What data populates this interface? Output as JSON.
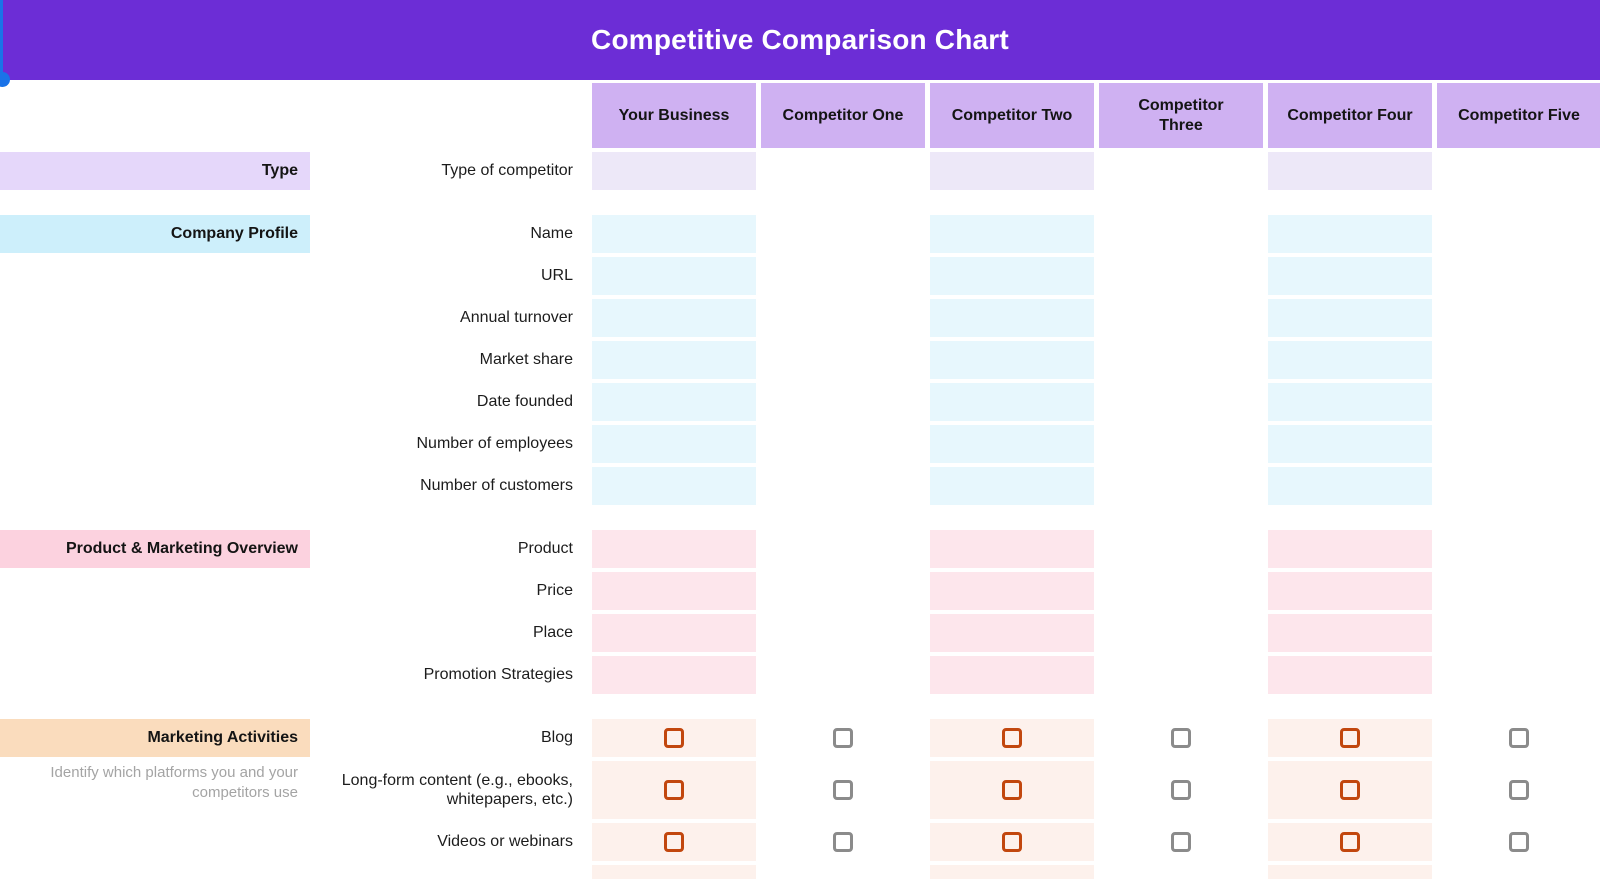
{
  "banner": {
    "title": "Competitive Comparison Chart",
    "background": "#6c2dd6",
    "selection_color": "#1a73e8"
  },
  "table": {
    "header_background": "#cfb1f2",
    "columns": [
      {
        "label": "Your Business",
        "highlighted": true
      },
      {
        "label": "Competitor One",
        "highlighted": false
      },
      {
        "label": "Competitor Two",
        "highlighted": true
      },
      {
        "label": "Competitor\nThree",
        "highlighted": false
      },
      {
        "label": "Competitor Four",
        "highlighted": true
      },
      {
        "label": "Competitor Five",
        "highlighted": false
      }
    ],
    "checkbox_colors": {
      "highlighted_column": "#c2470e",
      "plain_column": "#8b8b8b"
    },
    "sections": [
      {
        "label": "Type",
        "label_background": "#e5d7fa",
        "cell_background": "#ede8f8",
        "rows": [
          {
            "label": "Type of competitor"
          }
        ]
      },
      {
        "label": "Company Profile",
        "label_background": "#cdeffb",
        "cell_background": "#e7f7fd",
        "rows": [
          {
            "label": "Name"
          },
          {
            "label": "URL"
          },
          {
            "label": "Annual turnover"
          },
          {
            "label": "Market share"
          },
          {
            "label": "Date founded"
          },
          {
            "label": "Number of employees"
          },
          {
            "label": "Number of customers"
          }
        ]
      },
      {
        "label": "Product & Marketing Overview",
        "label_background": "#fcd2df",
        "cell_background": "#fde6ec",
        "rows": [
          {
            "label": "Product"
          },
          {
            "label": "Price"
          },
          {
            "label": "Place"
          },
          {
            "label": "Promotion Strategies"
          }
        ]
      },
      {
        "label": "Marketing Activities",
        "subtitle": "Identify which platforms you and your competitors use",
        "label_background": "#fadcbd",
        "cell_background": "#fdf1ec",
        "checkboxes": true,
        "rows": [
          {
            "label": "Blog"
          },
          {
            "label": "Long-form content (e.g., ebooks, whitepapers, etc.)",
            "tall": true
          },
          {
            "label": "Videos or webinars"
          },
          {
            "label": "",
            "partial": true
          }
        ]
      }
    ]
  }
}
